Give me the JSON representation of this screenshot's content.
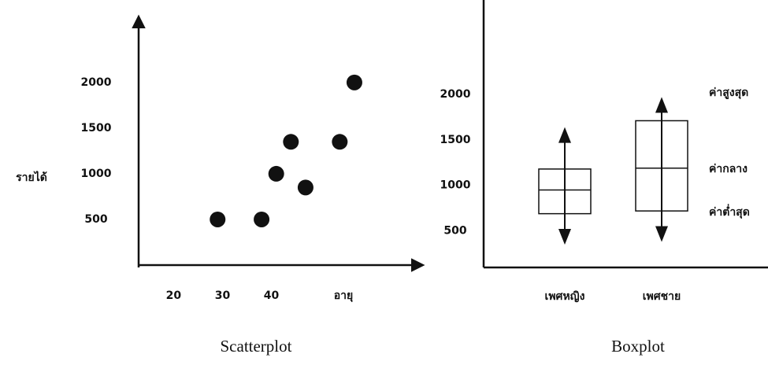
{
  "chart_data": [
    {
      "type": "scatter",
      "title": "Scatterplot",
      "x_label": "อายุ",
      "y_label": "รายได้",
      "x": [
        29,
        38,
        41,
        44,
        47,
        54,
        57
      ],
      "values": [
        500,
        500,
        1000,
        1350,
        850,
        1350,
        2000
      ],
      "color": "#111111",
      "xlim": [
        13,
        72
      ],
      "ylim": [
        0,
        2800
      ],
      "xticks": [
        20,
        30,
        40
      ],
      "yticks": [
        500,
        1000,
        1500,
        2000
      ]
    },
    {
      "type": "box",
      "title": "Boxplot",
      "categories": [
        "เพศหญิง",
        "เพศชาย"
      ],
      "boxes": [
        {
          "low": 350,
          "q1": 690,
          "median": 950,
          "q3": 1180,
          "high": 1640
        },
        {
          "low": 380,
          "q1": 720,
          "median": 1190,
          "q3": 1710,
          "high": 1970
        }
      ],
      "annotations": [
        "ค่าสูงสุด",
        "ค่ากลาง",
        "ค่าต่ำสุด"
      ],
      "color": "#111111",
      "ylim": [
        100,
        3000
      ],
      "yticks": [
        500,
        1000,
        1500,
        2000
      ]
    }
  ]
}
